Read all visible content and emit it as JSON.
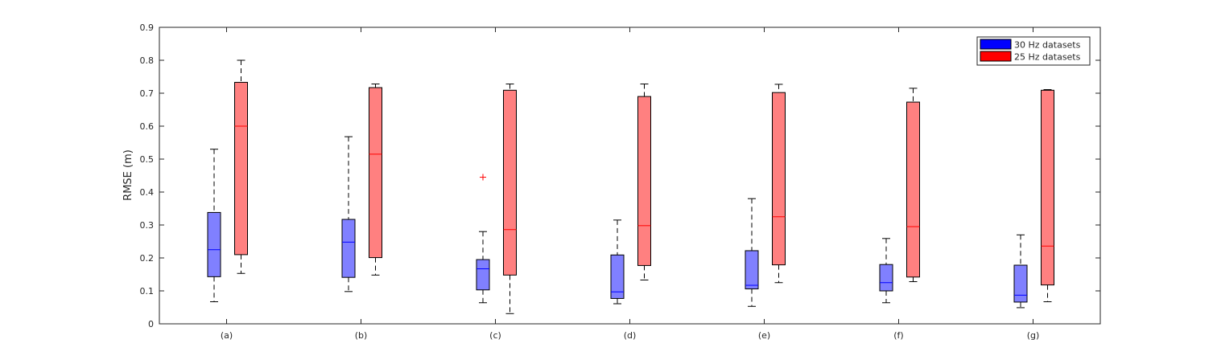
{
  "chart_data": {
    "type": "boxplot",
    "ylabel": "RMSE (m)",
    "xlabel": "",
    "ylim": [
      0,
      0.9
    ],
    "yticks": [
      "0",
      "0.1",
      "0.2",
      "0.3",
      "0.4",
      "0.5",
      "0.6",
      "0.7",
      "0.8",
      "0.9"
    ],
    "categories": [
      "(a)",
      "(b)",
      "(c)",
      "(d)",
      "(e)",
      "(f)",
      "(g)"
    ],
    "legend_position": "top-right",
    "series": [
      {
        "name": "30 Hz datasets",
        "fill": "#8080ff",
        "legend_color": "#0000ff",
        "median_color": "#0000ff",
        "boxes": [
          {
            "min": 0.067,
            "q1": 0.143,
            "median": 0.225,
            "q3": 0.338,
            "max": 0.53,
            "outliers": []
          },
          {
            "min": 0.098,
            "q1": 0.141,
            "median": 0.248,
            "q3": 0.317,
            "max": 0.568,
            "outliers": []
          },
          {
            "min": 0.064,
            "q1": 0.103,
            "median": 0.167,
            "q3": 0.195,
            "max": 0.28,
            "outliers": [
              0.445
            ]
          },
          {
            "min": 0.061,
            "q1": 0.077,
            "median": 0.097,
            "q3": 0.209,
            "max": 0.315,
            "outliers": []
          },
          {
            "min": 0.053,
            "q1": 0.106,
            "median": 0.117,
            "q3": 0.222,
            "max": 0.38,
            "outliers": []
          },
          {
            "min": 0.064,
            "q1": 0.1,
            "median": 0.125,
            "q3": 0.18,
            "max": 0.259,
            "outliers": []
          },
          {
            "min": 0.049,
            "q1": 0.066,
            "median": 0.087,
            "q3": 0.178,
            "max": 0.27,
            "outliers": []
          }
        ]
      },
      {
        "name": "25 Hz datasets",
        "fill": "#ff8080",
        "legend_color": "#ff0000",
        "median_color": "#ff0000",
        "boxes": [
          {
            "min": 0.153,
            "q1": 0.21,
            "median": 0.6,
            "q3": 0.733,
            "max": 0.8,
            "outliers": []
          },
          {
            "min": 0.148,
            "q1": 0.201,
            "median": 0.515,
            "q3": 0.717,
            "max": 0.728,
            "outliers": []
          },
          {
            "min": 0.031,
            "q1": 0.148,
            "median": 0.286,
            "q3": 0.709,
            "max": 0.728,
            "outliers": []
          },
          {
            "min": 0.133,
            "q1": 0.177,
            "median": 0.298,
            "q3": 0.69,
            "max": 0.728,
            "outliers": []
          },
          {
            "min": 0.125,
            "q1": 0.179,
            "median": 0.325,
            "q3": 0.702,
            "max": 0.727,
            "outliers": []
          },
          {
            "min": 0.128,
            "q1": 0.142,
            "median": 0.295,
            "q3": 0.673,
            "max": 0.715,
            "outliers": []
          },
          {
            "min": 0.067,
            "q1": 0.118,
            "median": 0.236,
            "q3": 0.709,
            "max": 0.711,
            "outliers": []
          }
        ]
      }
    ]
  }
}
